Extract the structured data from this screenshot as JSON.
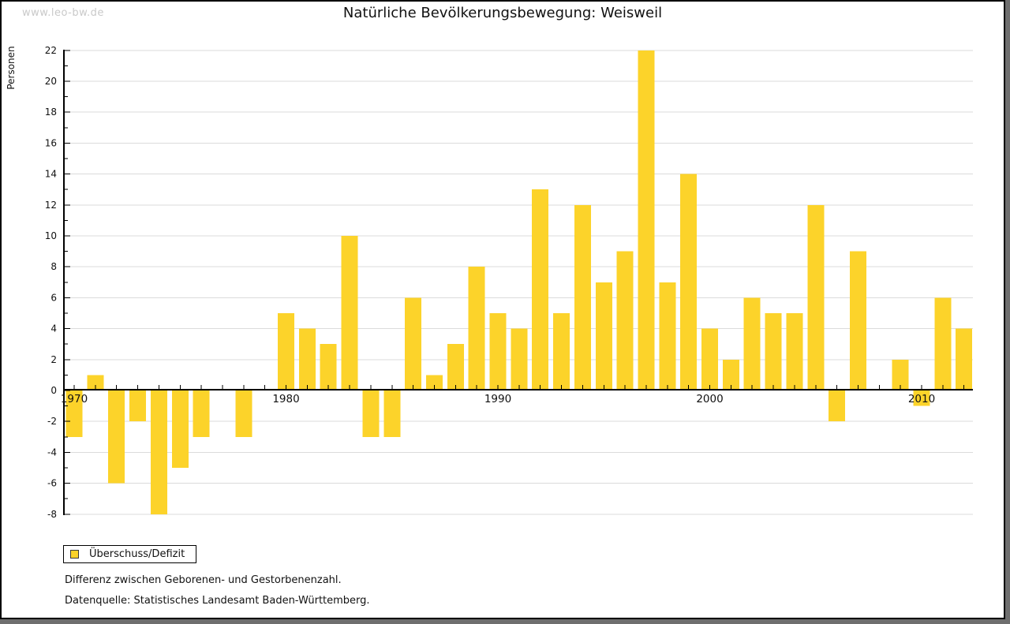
{
  "watermark": "www.leo-bw.de",
  "title": "Natürliche Bevölkerungsbewegung: Weisweil",
  "legend": {
    "label": "Überschuss/Defizit"
  },
  "footnotes": [
    "Differenz zwischen Geborenen- und Gestorbenenzahl.",
    "Datenquelle: Statistisches Landesamt Baden-Württemberg."
  ],
  "colors": {
    "bar": "#FCD32A",
    "grid": "#DBDBDB",
    "axis": "#000000",
    "tick_text": "#111111",
    "watermark": "#C9C9C9",
    "frame_shadow": "#6E6E6E",
    "swatch_border": "#3A3A3A"
  },
  "chart_data": {
    "type": "bar",
    "title": "Natürliche Bevölkerungsbewegung: Weisweil",
    "xlabel": "",
    "ylabel": "Personen",
    "series_name": "Überschuss/Defizit",
    "x": [
      1970,
      1971,
      1972,
      1973,
      1974,
      1975,
      1976,
      1977,
      1978,
      1979,
      1980,
      1981,
      1982,
      1983,
      1984,
      1985,
      1986,
      1987,
      1988,
      1989,
      1990,
      1991,
      1992,
      1993,
      1994,
      1995,
      1996,
      1997,
      1998,
      1999,
      2000,
      2001,
      2002,
      2003,
      2004,
      2005,
      2006,
      2007,
      2008,
      2009,
      2010,
      2011,
      2012
    ],
    "values": [
      -3,
      1,
      -6,
      -2,
      -8,
      -5,
      -3,
      0,
      -3,
      0,
      5,
      4,
      3,
      10,
      -3,
      -3,
      6,
      1,
      3,
      8,
      5,
      4,
      13,
      5,
      12,
      7,
      9,
      22,
      7,
      14,
      4,
      2,
      6,
      5,
      5,
      12,
      -2,
      9,
      0,
      2,
      -1,
      6,
      4
    ],
    "ylim": [
      -8,
      22
    ],
    "ytick_major_step": 2,
    "ytick_minor_step": 1,
    "xtick_labels": [
      1970,
      1980,
      1990,
      2000,
      2010
    ],
    "grid": "horizontal",
    "legend_position": "bottom-left",
    "note": "zero values rendered as no bar"
  }
}
